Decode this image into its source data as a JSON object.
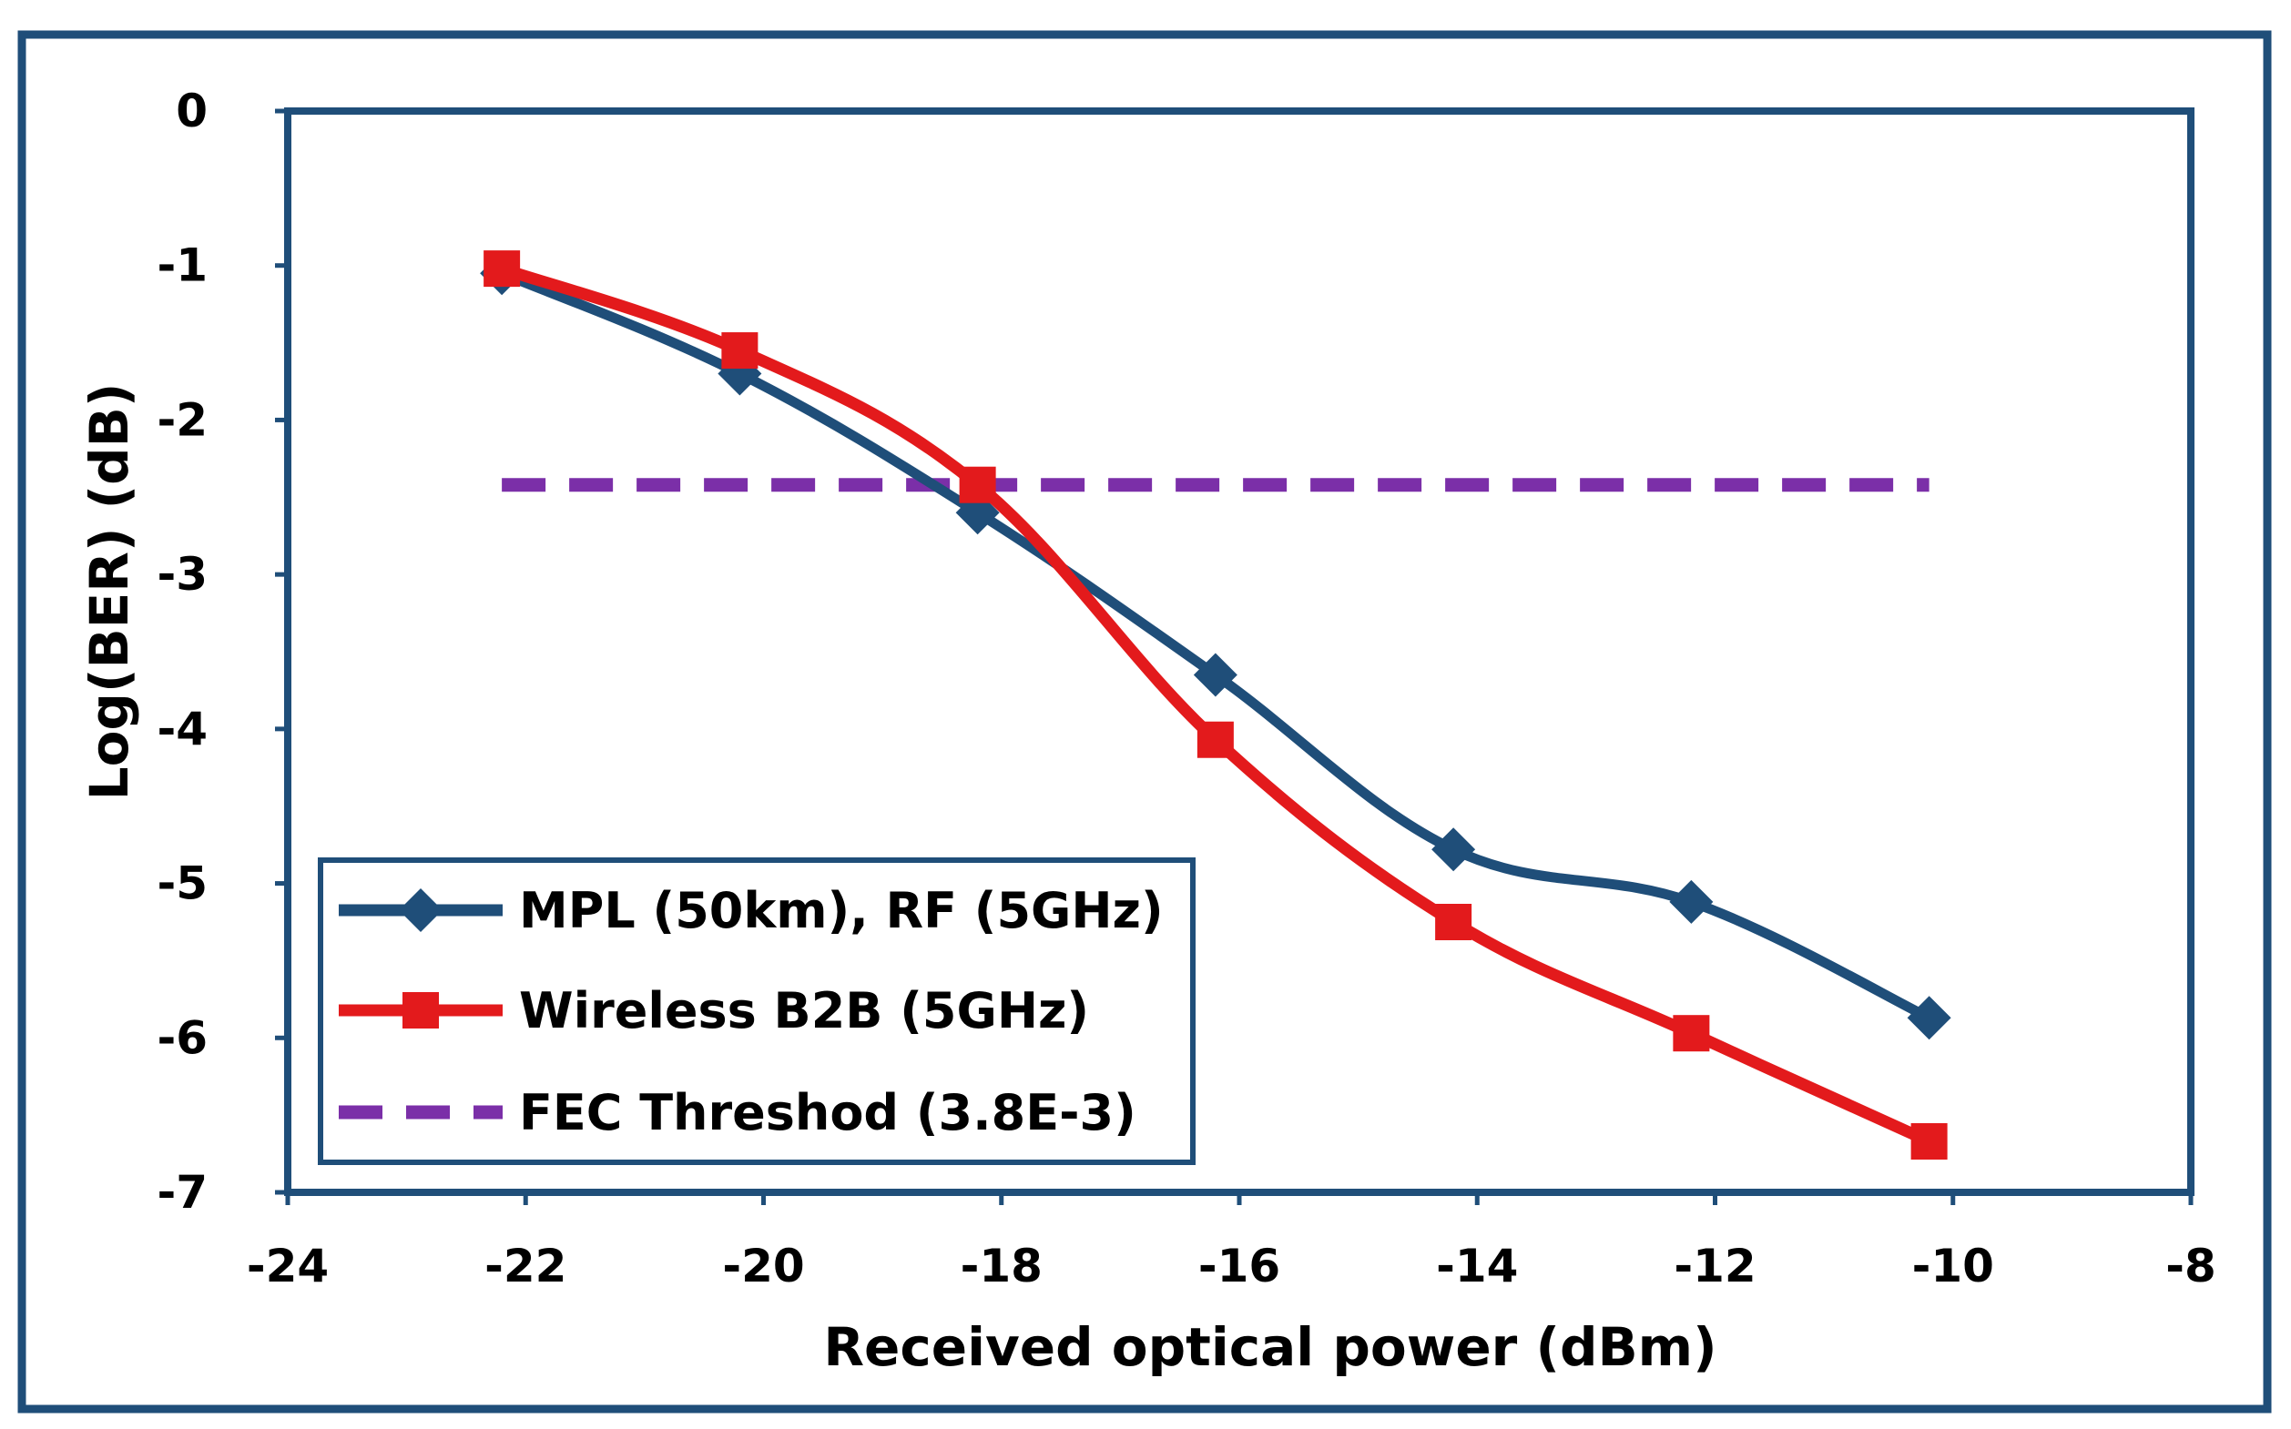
{
  "chart_data": {
    "type": "line",
    "title": "",
    "xlabel": "Received optical power (dBm)",
    "ylabel": "Log(BER) (dB)",
    "xlim": [
      -24,
      -8
    ],
    "ylim": [
      -7,
      0
    ],
    "xticks": [
      -24,
      -22,
      -20,
      -18,
      -16,
      -14,
      -12,
      -10,
      -8
    ],
    "yticks": [
      0,
      -1,
      -2,
      -3,
      -4,
      -5,
      -6,
      -7
    ],
    "xtick_labels": [
      "-24",
      "-22",
      "-20",
      "-18",
      "-16",
      "-14",
      "-12",
      "-10",
      "-8"
    ],
    "ytick_labels": [
      "0",
      "-1",
      "-2",
      "-3",
      "-4",
      "-5",
      "-6",
      "-7"
    ],
    "grid": false,
    "legend_position": "bottom-left",
    "series": [
      {
        "name": "MPL (50km), RF (5GHz)",
        "color": "#1F4E79",
        "marker": "diamond",
        "line": "solid",
        "x": [
          -22.2,
          -20.2,
          -18.2,
          -16.2,
          -14.2,
          -12.2,
          -10.2
        ],
        "y": [
          -1.05,
          -1.7,
          -2.6,
          -3.65,
          -4.78,
          -5.12,
          -5.87
        ]
      },
      {
        "name": "Wireless B2B (5GHz)",
        "color": "#E31A1C",
        "marker": "square",
        "line": "solid",
        "x": [
          -22.2,
          -20.2,
          -18.2,
          -16.2,
          -14.2,
          -12.2,
          -10.2
        ],
        "y": [
          -1.02,
          -1.55,
          -2.42,
          -4.07,
          -5.25,
          -5.97,
          -6.67
        ]
      },
      {
        "name": "FEC Threshod (3.8E-3)",
        "color": "#7B2FA8",
        "marker": "none",
        "line": "dashed",
        "x": [
          -22.2,
          -10.2
        ],
        "y": [
          -2.42,
          -2.42
        ]
      }
    ]
  },
  "colors": {
    "frame": "#1F4E79",
    "plot_border": "#1F4E79",
    "legend_border": "#1F4E79"
  }
}
